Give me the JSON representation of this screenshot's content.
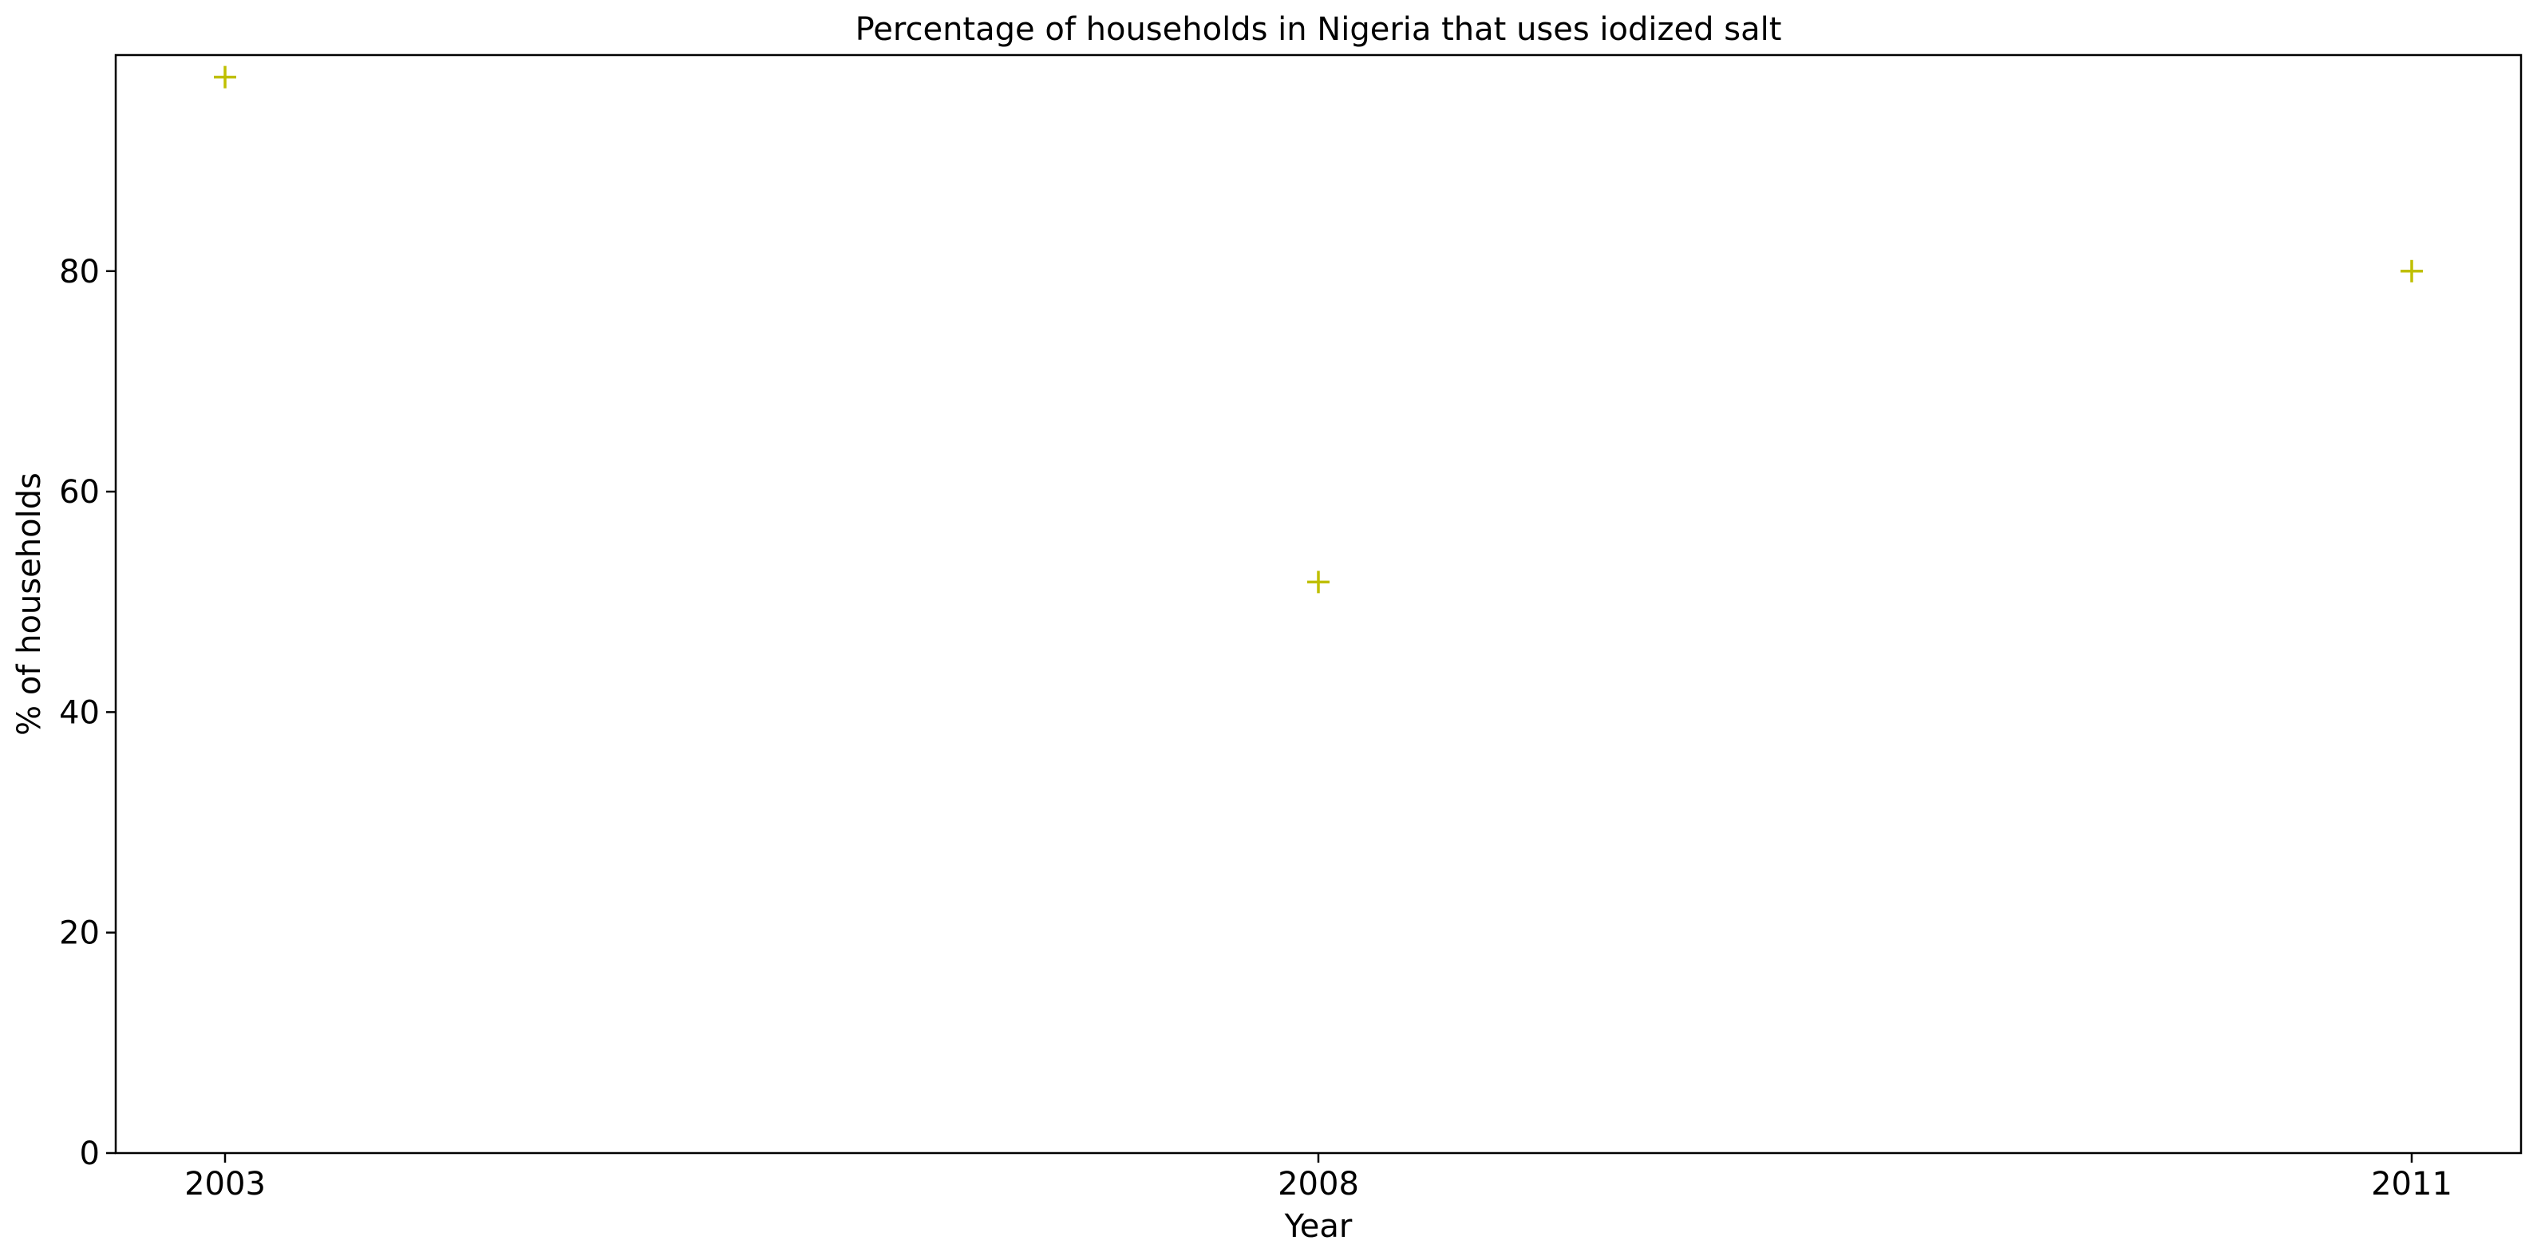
{
  "chart_data": {
    "type": "scatter",
    "title": "Percentage of households in Nigeria that uses iodized salt",
    "xlabel": "Year",
    "ylabel": "% of households",
    "x": [
      "2003",
      "2008",
      "2011"
    ],
    "y": [
      97.6,
      51.8,
      80.0
    ],
    "x_tick_labels": [
      "2003",
      "2008",
      "2011"
    ],
    "y_ticks": [
      0,
      20,
      40,
      60,
      80
    ],
    "y_tick_labels": [
      "0",
      "20",
      "40",
      "60",
      "80"
    ],
    "ylim": [
      0,
      99.6
    ],
    "marker": "plus",
    "marker_color": "#bfbf00",
    "grid": false,
    "legend": "none"
  }
}
